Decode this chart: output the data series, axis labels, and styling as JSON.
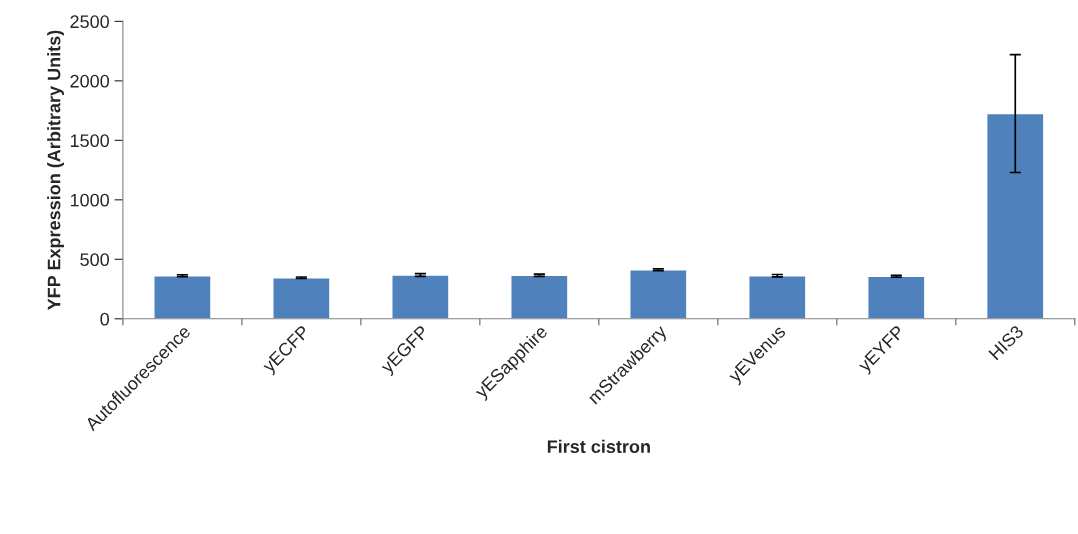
{
  "chart_data": {
    "type": "bar",
    "xlabel": "First cistron",
    "ylabel": "YFP Expression (Arbitrary Units)",
    "categories": [
      "Autofluorescence",
      "yECFP",
      "yEGFP",
      "yESapphire",
      "mStrawberry",
      "yEVenus",
      "yEYFP",
      "HIS3"
    ],
    "values": [
      362,
      345,
      368,
      366,
      412,
      362,
      358,
      1725
    ],
    "errors": [
      8,
      6,
      12,
      10,
      8,
      10,
      8,
      495
    ],
    "color": "#4f81bd",
    "ylim": [
      0,
      2500
    ],
    "yticks": [
      0,
      500,
      1000,
      1500,
      2000,
      2500
    ],
    "grid": false
  }
}
